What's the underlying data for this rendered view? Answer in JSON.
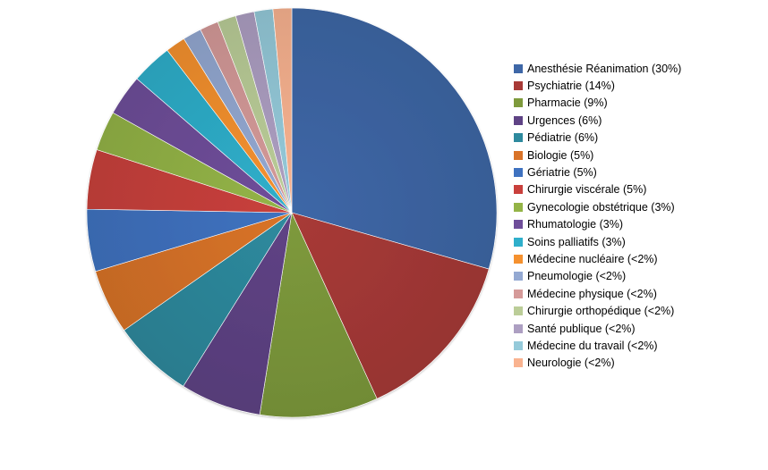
{
  "chart_data": {
    "type": "pie",
    "title": "",
    "legend_position": "right",
    "start_angle_deg": 0,
    "direction": "clockwise",
    "slices": [
      {
        "label": "Anesthésie Réanimation (30%)",
        "value": 30.0,
        "color": "#3E67A7"
      },
      {
        "label": "Psychiatrie (14%)",
        "value": 14.0,
        "color": "#A83A37"
      },
      {
        "label": "Pharmacie (9%)",
        "value": 9.5,
        "color": "#7E9A3C"
      },
      {
        "label": "Urgences (6%)",
        "value": 6.5,
        "color": "#5F4385"
      },
      {
        "label": "Pédiatrie (6%)",
        "value": 6.5,
        "color": "#2E8A9E"
      },
      {
        "label": "Biologie (5%)",
        "value": 5.2,
        "color": "#D97328"
      },
      {
        "label": "Gériatrie (5%)",
        "value": 5.0,
        "color": "#3F72C0"
      },
      {
        "label": "Chirurgie viscérale (5%)",
        "value": 4.8,
        "color": "#C9403C"
      },
      {
        "label": "Gynecologie obstétrique (3%)",
        "value": 3.2,
        "color": "#94B447"
      },
      {
        "label": "Rhumatologie (3%)",
        "value": 3.3,
        "color": "#6F4E9A"
      },
      {
        "label": "Soins palliatifs (3%)",
        "value": 3.3,
        "color": "#2FAFCB"
      },
      {
        "label": "Médecine nucléaire (<2%)",
        "value": 1.6,
        "color": "#F5912F"
      },
      {
        "label": "Pneumologie (<2%)",
        "value": 1.5,
        "color": "#94A9D2"
      },
      {
        "label": "Médecine physique (<2%)",
        "value": 1.5,
        "color": "#D59A99"
      },
      {
        "label": "Chirurgie orthopédique (<2%)",
        "value": 1.5,
        "color": "#BBCD98"
      },
      {
        "label": "Santé publique (<2%)",
        "value": 1.5,
        "color": "#AD9FC2"
      },
      {
        "label": "Médecine du travail (<2%)",
        "value": 1.5,
        "color": "#95CADA"
      },
      {
        "label": "Neurologie (<2%)",
        "value": 1.5,
        "color": "#F9B390"
      }
    ]
  }
}
